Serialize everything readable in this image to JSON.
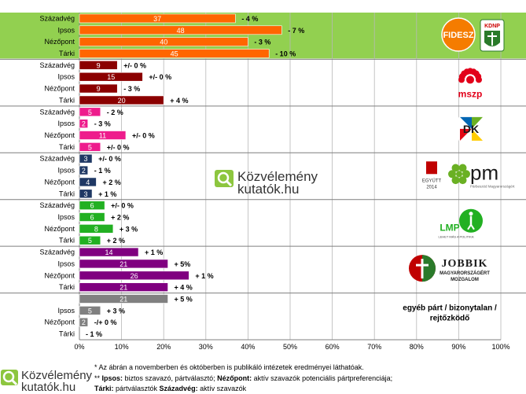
{
  "chart_data": {
    "type": "bar",
    "orientation": "horizontal",
    "xlim": [
      0,
      100
    ],
    "x_ticks": [
      "0%",
      "10%",
      "20%",
      "30%",
      "40%",
      "50%",
      "60%",
      "70%",
      "80%",
      "90%",
      "100%"
    ],
    "grid": true,
    "groups": [
      {
        "party": "Fidesz-KDNP",
        "color": "#ff6600",
        "bg": "#92d050",
        "rows": [
          {
            "pollster": "Századvég",
            "value": 37,
            "label": "37",
            "change": "- 4 %"
          },
          {
            "pollster": "Ipsos",
            "value": 48,
            "label": "48",
            "change": "- 7 %"
          },
          {
            "pollster": "Nézőpont",
            "value": 40,
            "label": "40",
            "change": "- 3 %"
          },
          {
            "pollster": "Tárki",
            "value": 45,
            "label": "45",
            "change": "- 10 %"
          }
        ]
      },
      {
        "party": "MSZP",
        "color": "#8b0000",
        "rows": [
          {
            "pollster": "Századvég",
            "value": 9,
            "label": "9",
            "change": "+/- 0 %"
          },
          {
            "pollster": "Ipsos",
            "value": 15,
            "label": "15",
            "change": "+/- 0 %"
          },
          {
            "pollster": "Nézőpont",
            "value": 9,
            "label": "9",
            "change": "- 3 %"
          },
          {
            "pollster": "Tárki",
            "value": 20,
            "label": "20",
            "change": "+ 4 %"
          }
        ]
      },
      {
        "party": "DK",
        "color": "#ee1c8c",
        "rows": [
          {
            "pollster": "Századvég",
            "value": 5,
            "label": "5",
            "change": "- 2 %"
          },
          {
            "pollster": "Ipsos",
            "value": 2,
            "label": "2",
            "change": "- 3 %"
          },
          {
            "pollster": "Nézőpont",
            "value": 11,
            "label": "11",
            "change": "+/- 0 %"
          },
          {
            "pollster": "Tárki",
            "value": 5,
            "label": "5",
            "change": "+/- 0 %"
          }
        ]
      },
      {
        "party": "Együtt 2014 - PM",
        "color": "#1f3864",
        "rows": [
          {
            "pollster": "Századvég",
            "value": 3,
            "label": "3",
            "change": "+/- 0 %"
          },
          {
            "pollster": "Ipsos",
            "value": 2,
            "label": "2",
            "change": "- 1 %"
          },
          {
            "pollster": "Nézőpont",
            "value": 4,
            "label": "4",
            "change": "+ 2 %"
          },
          {
            "pollster": "Tárki",
            "value": 3,
            "label": "3",
            "change": "+ 1 %"
          }
        ]
      },
      {
        "party": "LMP",
        "color": "#22b022",
        "rows": [
          {
            "pollster": "Századvég",
            "value": 6,
            "label": "6",
            "change": "+/- 0 %"
          },
          {
            "pollster": "Ipsos",
            "value": 6,
            "label": "6",
            "change": "+ 2 %"
          },
          {
            "pollster": "Nézőpont",
            "value": 8,
            "label": "8",
            "change": "+ 3 %"
          },
          {
            "pollster": "Tárki",
            "value": 5,
            "label": "5",
            "change": "+ 2 %"
          }
        ]
      },
      {
        "party": "Jobbik",
        "color": "#800080",
        "rows": [
          {
            "pollster": "Századvég",
            "value": 14,
            "label": "14",
            "change": "+ 1 %"
          },
          {
            "pollster": "Ipsos",
            "value": 21,
            "label": "21",
            "change": "+ 5%"
          },
          {
            "pollster": "Nézőpont",
            "value": 26,
            "label": "26",
            "change": "+ 1 %"
          },
          {
            "pollster": "Tárki",
            "value": 21,
            "label": "21",
            "change": "+ 4 %"
          }
        ]
      },
      {
        "party": "egyéb párt / bizonytalan / rejtőzködő",
        "color": "#808080",
        "rows": [
          {
            "pollster": "",
            "value": 21,
            "label": "21",
            "change": "+ 5 %"
          },
          {
            "pollster": "Ipsos",
            "value": 5,
            "label": "5",
            "change": "+ 3 %"
          },
          {
            "pollster": "Nézőpont",
            "value": 2,
            "label": "2",
            "change": "-/+ 0 %"
          },
          {
            "pollster": "Tárki",
            "value": 0,
            "label": "",
            "change": "- 1 %"
          }
        ]
      }
    ],
    "other_label_lines": [
      "egyéb párt / bizonytalan /",
      "rejtőzködő"
    ],
    "logos": {
      "fidesz": "FIDESZ",
      "kdnp": "KDNP",
      "mszp": "mszp",
      "dk": "DK",
      "egyutt_line1": "EGYÜTT",
      "egyutt_line2": "2014",
      "pm": "pm",
      "pm_sub": "Párbeszéd Magyarországért",
      "lmp": "LMP",
      "lmp_sub": "LEHET MÁS A POLITIKA",
      "jobbik": "JOBBIK",
      "jobbik_sub1": "MAGYARORSZÁGÉRT",
      "jobbik_sub2": "MOZGALOM"
    }
  },
  "watermark": {
    "line1": "Közvélemény",
    "line2": "kutatók.hu"
  },
  "footer": {
    "note1": "* Az ábrán a novemberben és októberben is publikáló intézetek eredményei láthatóak.",
    "note2_prefix": "** ",
    "note2_b1": "Ipsos:",
    "note2_t1": " biztos szavazó, pártválasztó; ",
    "note2_b2": "Nézőpont:",
    "note2_t2": " aktív szavazók potenciális pártpreferenciája;",
    "note3_b1": "Tárki:",
    "note3_t1": " pártválasztók ",
    "note3_b2": "Századvég:",
    "note3_t2": " aktív szavazók",
    "logo_line1": "Közvélemény",
    "logo_line2": "kutatók.hu"
  }
}
